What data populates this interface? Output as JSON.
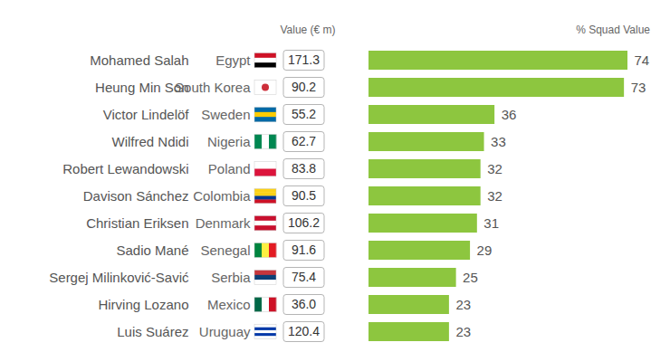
{
  "chart_data": {
    "type": "bar",
    "orientation": "horizontal",
    "column_headers": [
      "Value (€ m)",
      "% Squad Value"
    ],
    "categories": [
      "Mohamed Salah",
      "Heung Min Son",
      "Victor Lindelöf",
      "Wilfred Ndidi",
      "Robert Lewandowski",
      "Davison Sánchez",
      "Christian Eriksen",
      "Sadio Mané",
      "Sergej Milinković-Savić",
      "Hirving Lozano",
      "Luis Suárez"
    ],
    "countries": [
      "Egypt",
      "South Korea",
      "Sweden",
      "Nigeria",
      "Poland",
      "Colombia",
      "Denmark",
      "Senegal",
      "Serbia",
      "Mexico",
      "Uruguay"
    ],
    "market_values": [
      171.3,
      90.2,
      55.2,
      62.7,
      83.8,
      90.5,
      106.2,
      91.6,
      75.4,
      36.0,
      120.4
    ],
    "values": [
      74,
      73,
      36,
      33,
      32,
      32,
      31,
      29,
      25,
      23,
      23
    ],
    "color": "#8dc63f",
    "xlim": [
      0,
      74
    ],
    "xticks": [],
    "data_labels": true,
    "tick_labels": "y",
    "grid": false
  }
}
